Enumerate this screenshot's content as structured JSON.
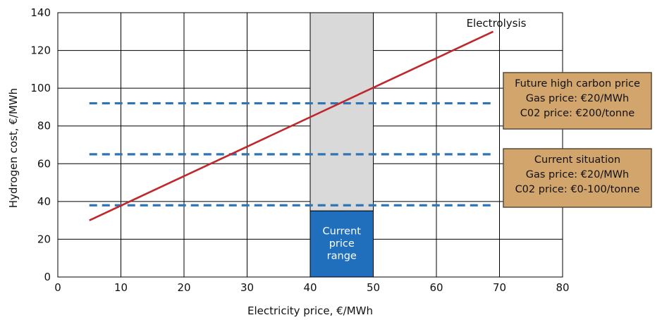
{
  "chart_data": {
    "type": "line",
    "title": "",
    "xlabel": "Electricity price, €/MWh",
    "ylabel": "Hydrogen cost, €/MWh",
    "xlim": [
      0,
      80
    ],
    "ylim": [
      0,
      140
    ],
    "x_ticks": [
      0,
      10,
      20,
      30,
      40,
      50,
      60,
      70,
      80
    ],
    "y_ticks": [
      0,
      20,
      40,
      60,
      80,
      100,
      120,
      140
    ],
    "grid": true,
    "series": [
      {
        "name": "Electrolysis",
        "style": "solid",
        "color": "#c0272d",
        "x": [
          5,
          69
        ],
        "y": [
          30,
          130
        ]
      }
    ],
    "reference_lines": [
      {
        "y": 92,
        "x_range": [
          5,
          69
        ],
        "style": "dashed",
        "color": "#2e75b6"
      },
      {
        "y": 65,
        "x_range": [
          5,
          69
        ],
        "style": "dashed",
        "color": "#2e75b6"
      },
      {
        "y": 38,
        "x_range": [
          5,
          69
        ],
        "style": "dashed",
        "color": "#2e75b6"
      }
    ],
    "shaded_band": {
      "x_range": [
        40,
        50
      ],
      "y_range": [
        35,
        140
      ],
      "color": "#d9d9d9"
    },
    "price_range_box": {
      "x_range": [
        40,
        50
      ],
      "y_range": [
        0,
        35
      ],
      "color": "#1f6fbd",
      "label_lines": [
        "Current",
        "price",
        "range"
      ]
    },
    "annotations": [
      {
        "id": "future",
        "lines": [
          "Future high carbon price",
          "Gas price: €20/MWh",
          "C02 price: €200/tonne"
        ],
        "fill": "#d2a56d",
        "border": "#5a4a38"
      },
      {
        "id": "current",
        "lines": [
          "Current situation",
          "Gas price: €20/MWh",
          "C02 price: €0-100/tonne"
        ],
        "fill": "#d2a56d",
        "border": "#5a4a38"
      }
    ]
  }
}
